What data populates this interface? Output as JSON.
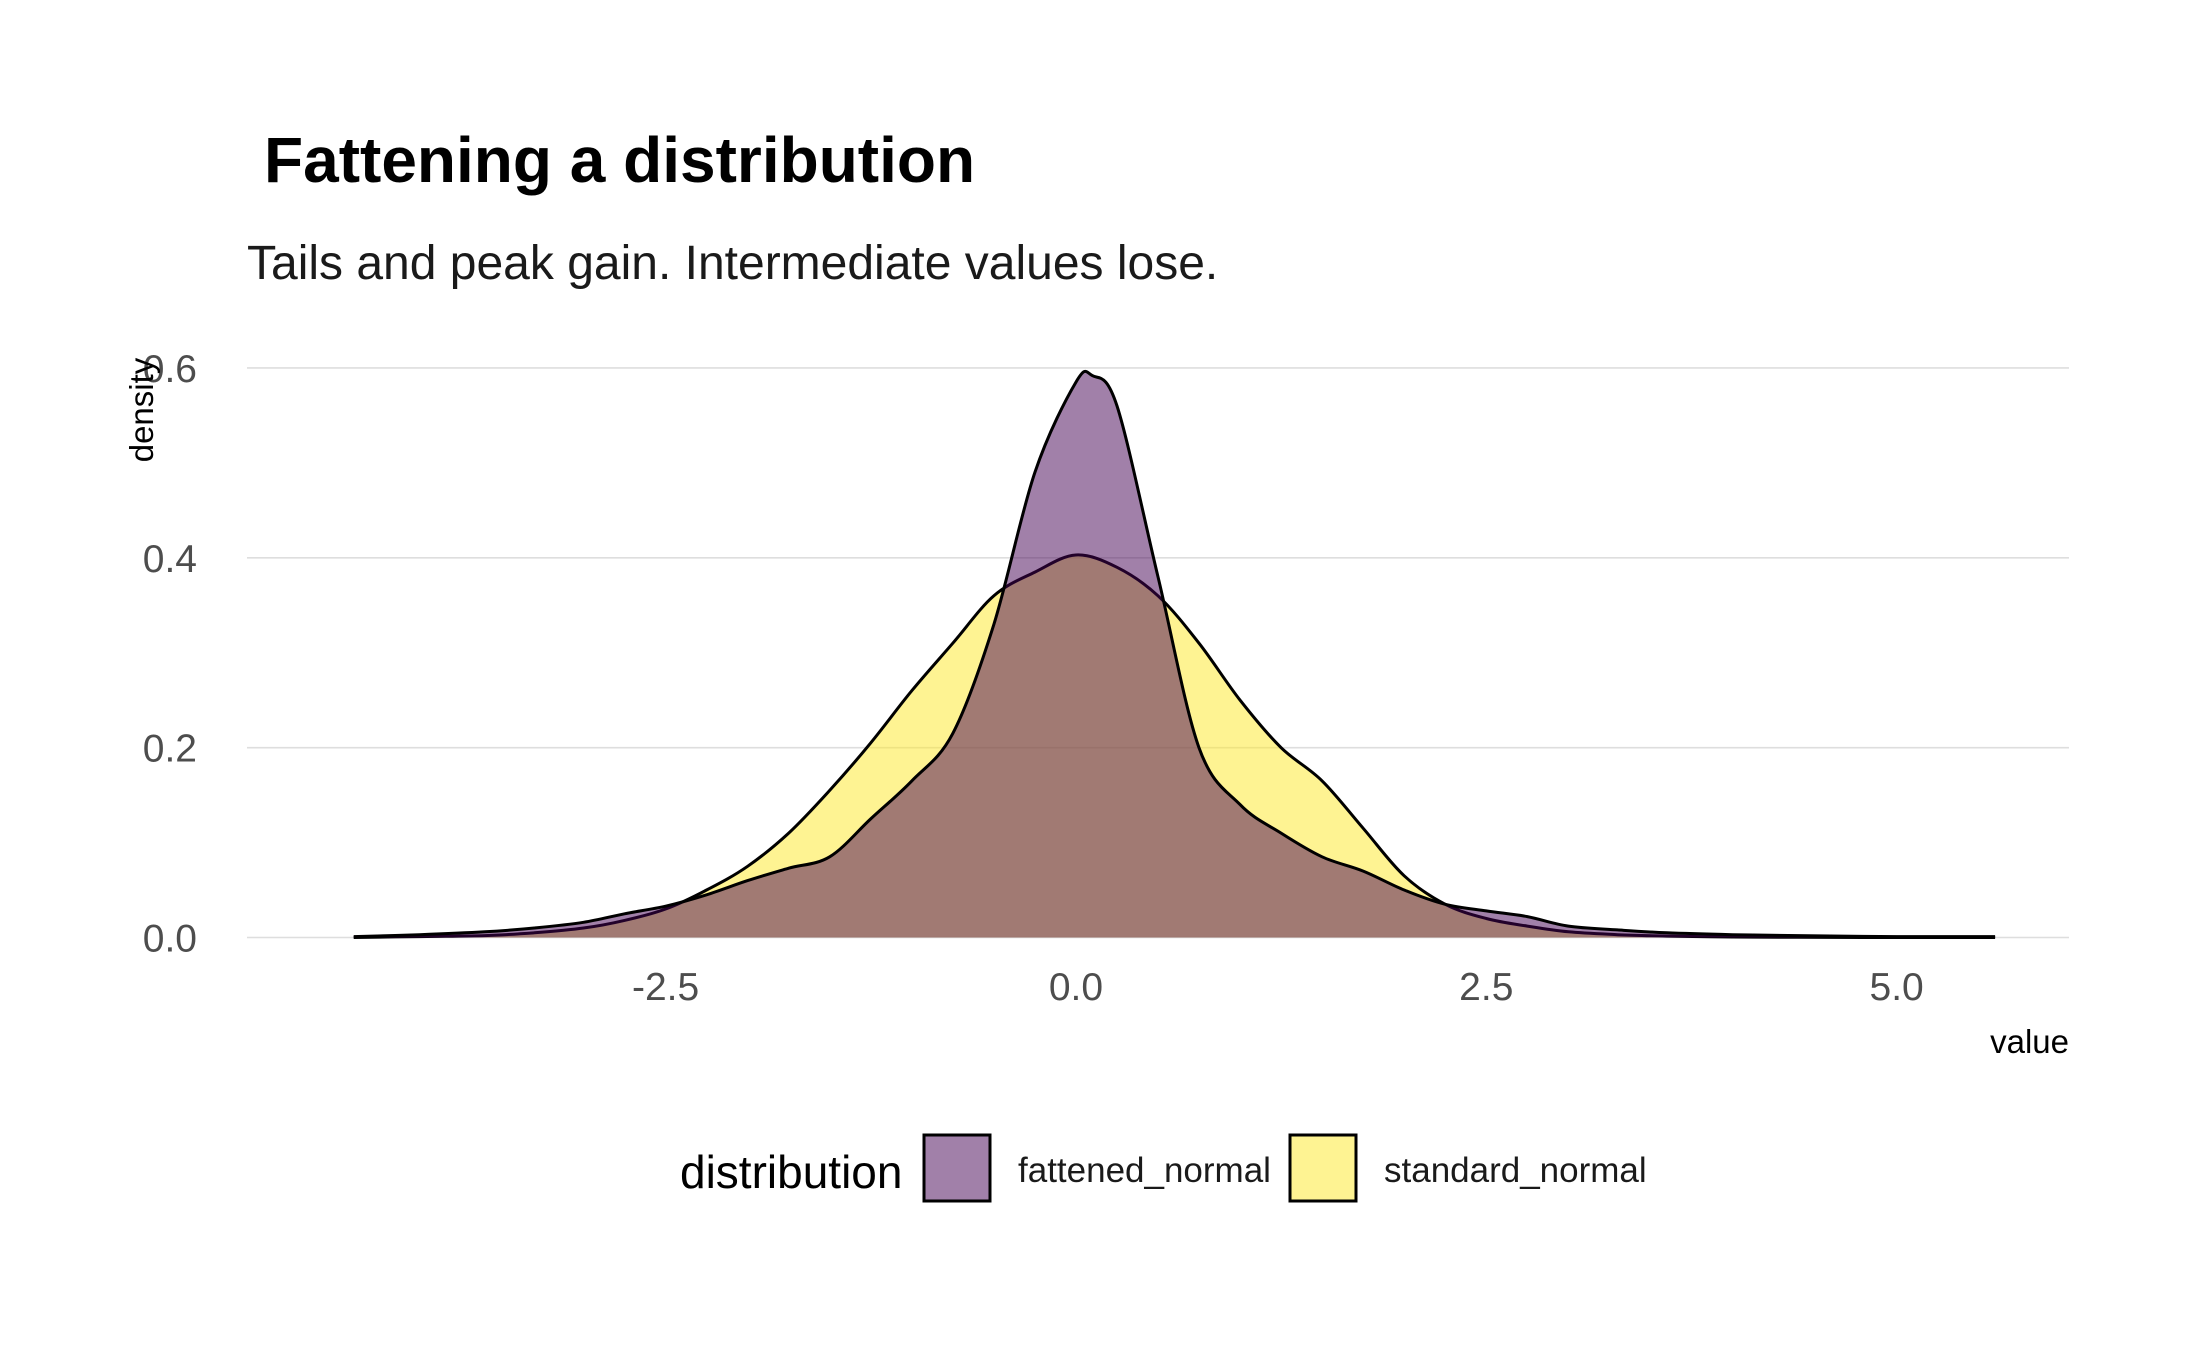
{
  "chart_data": {
    "type": "area",
    "title": "Fattening a distribution",
    "subtitle": "Tails and peak gain. Intermediate values lose.",
    "xlabel": "value",
    "ylabel": "density",
    "xlim": [
      -5.05,
      6.05
    ],
    "ylim": [
      -0.01,
      0.64
    ],
    "x_ticks": [
      {
        "value": -2.5,
        "label": "-2.5"
      },
      {
        "value": 0.0,
        "label": "0.0"
      },
      {
        "value": 2.5,
        "label": "2.5"
      },
      {
        "value": 5.0,
        "label": "5.0"
      }
    ],
    "y_ticks": [
      {
        "value": 0.0,
        "label": "0.0"
      },
      {
        "value": 0.2,
        "label": "0.2"
      },
      {
        "value": 0.4,
        "label": "0.4"
      },
      {
        "value": 0.6,
        "label": "0.6"
      }
    ],
    "grid": "horizontal-major",
    "legend": {
      "title": "distribution",
      "position": "bottom"
    },
    "series": [
      {
        "name": "standard_normal",
        "color": "#FDE725",
        "opacity": 0.5,
        "x": [
          -4.4,
          -4.0,
          -3.6,
          -3.3,
          -3.0,
          -2.75,
          -2.5,
          -2.25,
          -2.0,
          -1.75,
          -1.5,
          -1.25,
          -1.0,
          -0.75,
          -0.5,
          -0.25,
          0.0,
          0.25,
          0.5,
          0.75,
          1.0,
          1.25,
          1.5,
          1.75,
          2.0,
          2.25,
          2.5,
          2.75,
          3.0,
          3.3,
          3.6,
          4.0,
          4.4,
          5.0,
          5.6
        ],
        "y": [
          0.0,
          0.001,
          0.002,
          0.005,
          0.01,
          0.018,
          0.03,
          0.05,
          0.075,
          0.11,
          0.155,
          0.205,
          0.26,
          0.31,
          0.36,
          0.385,
          0.403,
          0.39,
          0.36,
          0.31,
          0.25,
          0.2,
          0.165,
          0.115,
          0.065,
          0.035,
          0.02,
          0.012,
          0.006,
          0.003,
          0.0015,
          0.0005,
          0.0002,
          0.0,
          0.0
        ]
      },
      {
        "name": "fattened_normal",
        "color": "#440154",
        "opacity": 0.5,
        "x": [
          -4.4,
          -4.0,
          -3.6,
          -3.3,
          -3.0,
          -2.75,
          -2.5,
          -2.25,
          -2.0,
          -1.75,
          -1.5,
          -1.25,
          -1.0,
          -0.75,
          -0.5,
          -0.25,
          0.0,
          0.1,
          0.25,
          0.5,
          0.75,
          1.0,
          1.25,
          1.5,
          1.75,
          2.0,
          2.25,
          2.5,
          2.75,
          3.0,
          3.3,
          3.6,
          4.0,
          4.4,
          5.0,
          5.6
        ],
        "y": [
          0.001,
          0.003,
          0.006,
          0.01,
          0.016,
          0.025,
          0.033,
          0.045,
          0.06,
          0.073,
          0.085,
          0.125,
          0.165,
          0.215,
          0.33,
          0.49,
          0.585,
          0.592,
          0.56,
          0.38,
          0.2,
          0.14,
          0.11,
          0.085,
          0.07,
          0.05,
          0.035,
          0.028,
          0.022,
          0.012,
          0.008,
          0.005,
          0.003,
          0.002,
          0.001,
          0.001
        ]
      }
    ]
  }
}
